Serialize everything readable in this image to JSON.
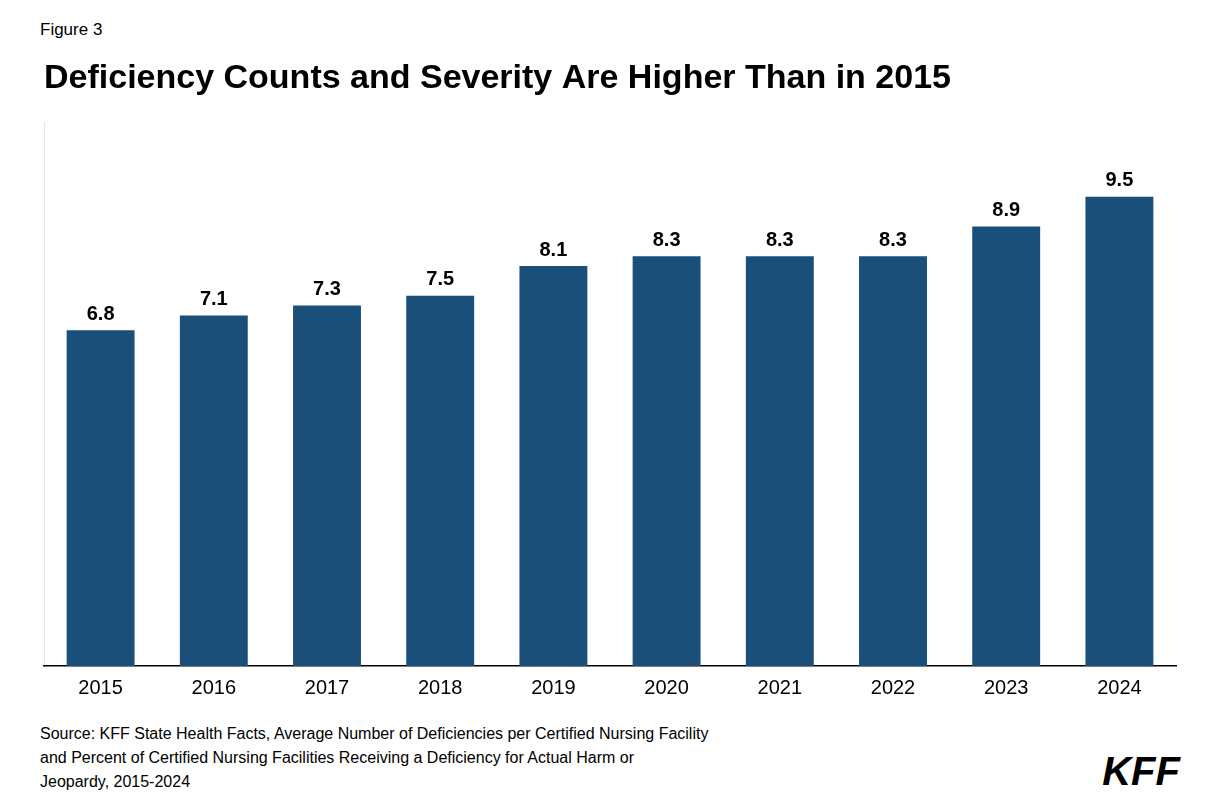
{
  "chart_data": {
    "type": "bar",
    "title": "Deficiency Counts and Severity Are Higher Than in 2015",
    "annotations": [
      "Figure 3",
      "Source: KFF State Health Facts, Average Number of Deficiencies per Certified Nursing Facility\nand Percent of Certified Nursing Facilities Receiving a Deficiency for Actual Harm or\nJeopardy, 2015-2024",
      "KFF"
    ],
    "categories": [
      "2015",
      "2016",
      "2017",
      "2018",
      "2019",
      "2020",
      "2021",
      "2022",
      "2023",
      "2024"
    ],
    "values": [
      6.8,
      7.1,
      7.3,
      7.5,
      8.1,
      8.3,
      8.3,
      8.3,
      8.9,
      9.5
    ],
    "color": "#1a4f7a",
    "ylim": [
      0,
      11
    ],
    "grid": false,
    "data_labels": true,
    "tick_labels": "x"
  }
}
